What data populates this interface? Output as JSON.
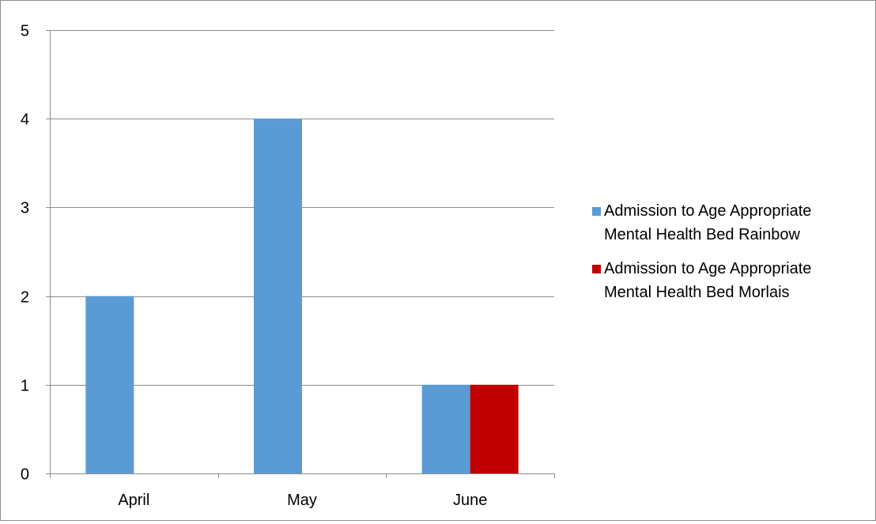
{
  "chart_data": {
    "type": "bar",
    "title": "",
    "xlabel": "",
    "ylabel": "",
    "categories": [
      "April",
      "May",
      "June"
    ],
    "series": [
      {
        "name": "Admission to Age Appropriate Mental Health Bed Rainbow",
        "values": [
          2,
          4,
          1
        ],
        "color": "#5b9bd5"
      },
      {
        "name": "Admission to Age Appropriate Mental Health Bed Morlais",
        "values": [
          0,
          0,
          1
        ],
        "color": "#c00000"
      }
    ],
    "ylim": [
      0,
      5
    ],
    "yticks": [
      0,
      1,
      2,
      3,
      4,
      5
    ],
    "grid": true,
    "legend_position": "right"
  },
  "legend": {
    "line1": [
      "Admission to Age Appropriate",
      "Admission to Age Appropriate"
    ],
    "line2": [
      "Mental Health Bed Rainbow",
      "Mental Health Bed Morlais"
    ]
  }
}
